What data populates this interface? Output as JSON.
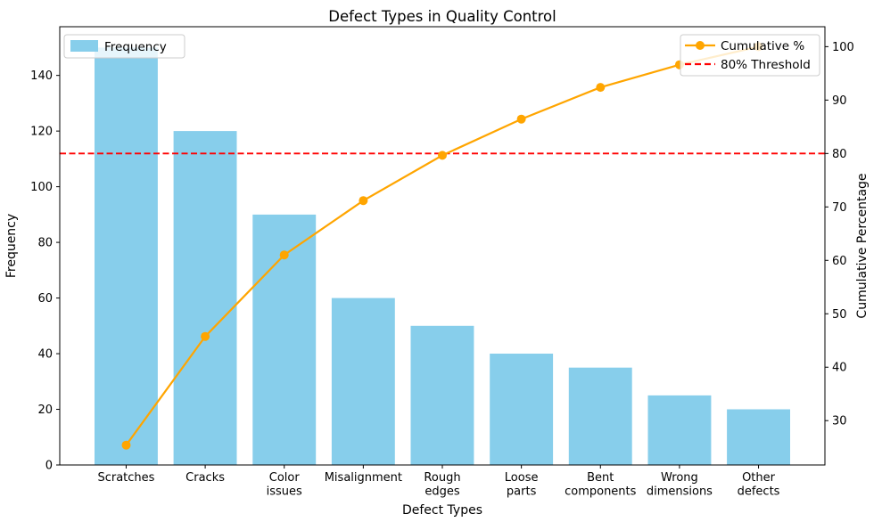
{
  "chart_data": {
    "type": "bar+line (Pareto)",
    "title": "Defect Types in Quality Control",
    "xlabel": "Defect Types",
    "ylabel_left": "Frequency",
    "ylabel_right": "Cumulative Percentage",
    "categories": [
      "Scratches",
      "Cracks",
      "Color issues",
      "Misalignment",
      "Rough edges",
      "Loose parts",
      "Bent components",
      "Wrong dimensions",
      "Other defects"
    ],
    "bar_series": {
      "name": "Frequency",
      "color": "#87CEEB",
      "values": [
        150,
        120,
        90,
        60,
        50,
        40,
        35,
        25,
        20
      ]
    },
    "line_series": {
      "name": "Cumulative %",
      "color": "#FFA500",
      "axis": "right",
      "values": [
        25.42,
        45.76,
        61.02,
        71.19,
        79.66,
        86.44,
        92.37,
        96.61,
        100.0
      ]
    },
    "threshold": {
      "name": "80% Threshold",
      "color": "#FF0000",
      "style": "dashed",
      "axis": "right",
      "value": 80
    },
    "ylim_left": [
      0,
      157.5
    ],
    "ylim_right": [
      21.7,
      103.73
    ],
    "yticks_left": [
      0,
      20,
      40,
      60,
      80,
      100,
      120,
      140
    ],
    "yticks_right": [
      30,
      40,
      50,
      60,
      70,
      80,
      90,
      100
    ],
    "legend_left_position": "upper left",
    "legend_right_position": "upper right",
    "grid": false
  }
}
